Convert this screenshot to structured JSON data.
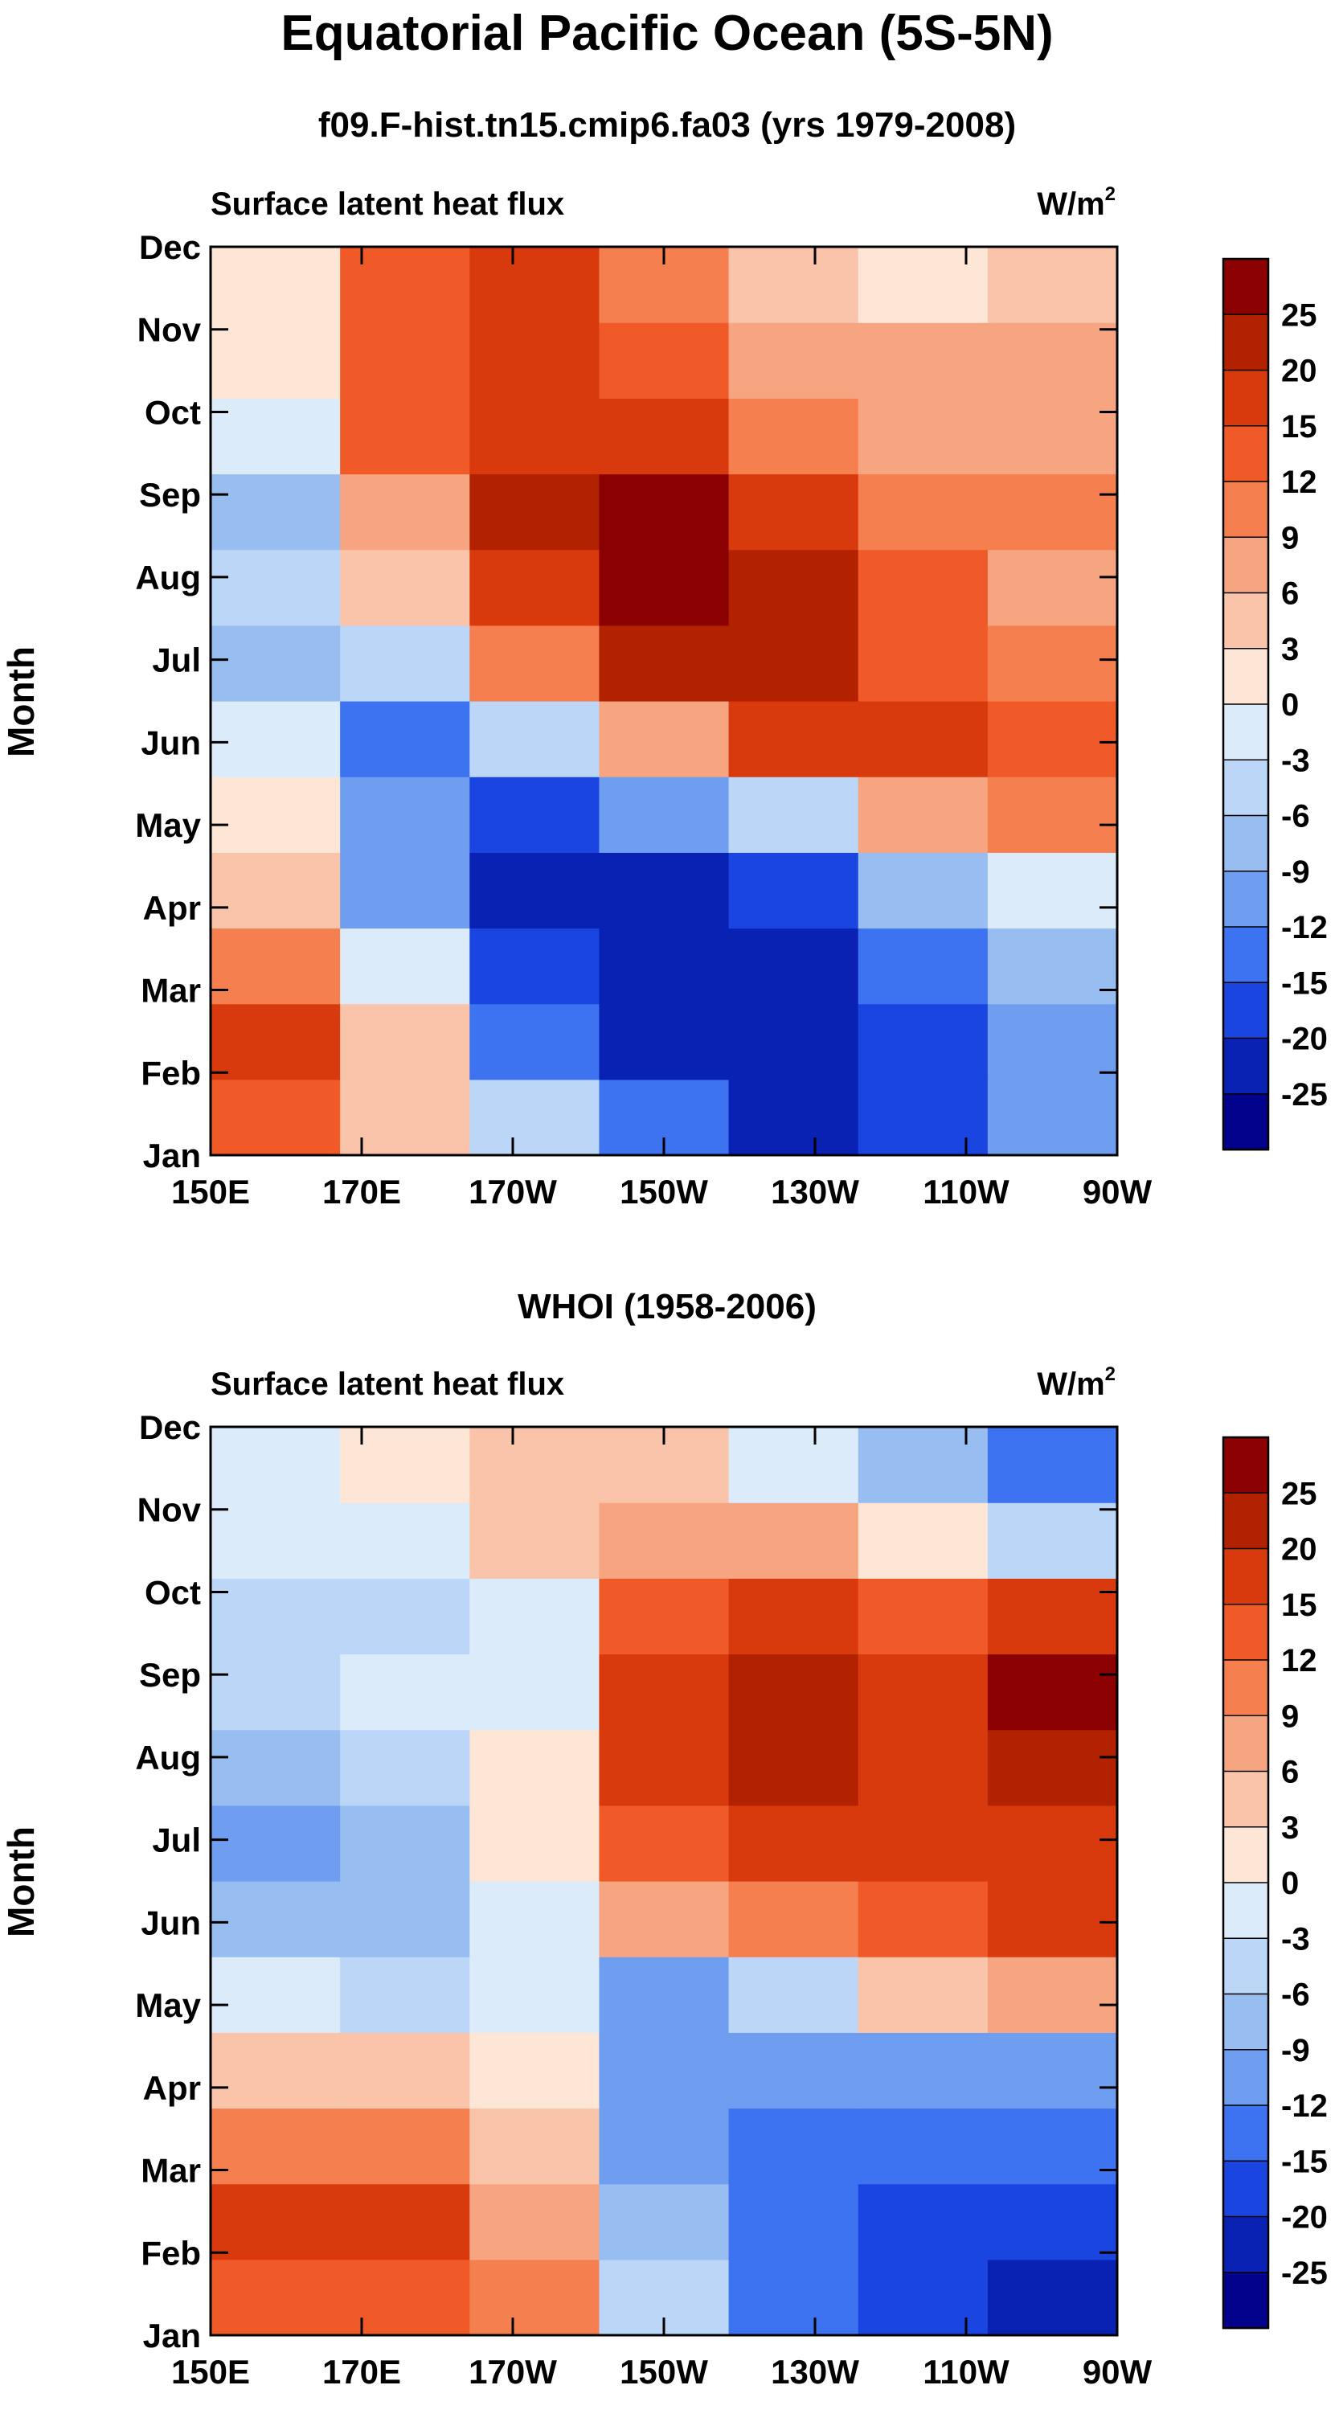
{
  "figure": {
    "title": "Equatorial Pacific Ocean (5S-5N)"
  },
  "chart_data": [
    {
      "type": "heatmap",
      "title": "f09.F-hist.tn15.cmip6.fa03 (yrs 1979-2008)",
      "left_label": "Surface latent heat flux",
      "units_base": "W/m",
      "units_exp": "2",
      "ylabel": "Month",
      "xlabel": "",
      "x_categories": [
        "150E",
        "170E",
        "170W",
        "150W",
        "130W",
        "110W",
        "90W"
      ],
      "y_categories": [
        "Jan",
        "Feb",
        "Mar",
        "Apr",
        "May",
        "Jun",
        "Jul",
        "Aug",
        "Sep",
        "Oct",
        "Nov",
        "Dec"
      ],
      "values": [
        [
          12,
          3,
          -6,
          -15,
          -25,
          -20,
          -12
        ],
        [
          15,
          3,
          -15,
          -25,
          -25,
          -20,
          -12
        ],
        [
          9,
          -3,
          -20,
          -25,
          -25,
          -15,
          -9
        ],
        [
          3,
          -12,
          -25,
          -25,
          -20,
          -9,
          -3
        ],
        [
          0,
          -12,
          -20,
          -12,
          -6,
          6,
          9
        ],
        [
          -3,
          -15,
          -6,
          6,
          15,
          15,
          12
        ],
        [
          -9,
          -6,
          9,
          20,
          20,
          12,
          9
        ],
        [
          -6,
          3,
          15,
          25,
          20,
          12,
          6
        ],
        [
          -9,
          6,
          20,
          25,
          15,
          9,
          9
        ],
        [
          -3,
          12,
          15,
          15,
          9,
          6,
          6
        ],
        [
          0,
          12,
          15,
          12,
          6,
          6,
          6
        ],
        [
          0,
          12,
          15,
          9,
          3,
          0,
          3
        ]
      ],
      "colorbar_levels": [
        "25",
        "20",
        "15",
        "12",
        "9",
        "6",
        "3",
        "0",
        "-3",
        "-6",
        "-9",
        "-12",
        "-15",
        "-20",
        "-25"
      ],
      "colors": [
        "#8b0000",
        "#b22200",
        "#d93a0d",
        "#f05a28",
        "#f57f4f",
        "#f7a480",
        "#fac4aa",
        "#fde6d6",
        "#dcebfa",
        "#bcd6f7",
        "#98bdf0",
        "#6f9df0",
        "#3d72f0",
        "#1a45e0",
        "#0a22b3",
        "#02028c"
      ]
    },
    {
      "type": "heatmap",
      "title": "WHOI (1958-2006)",
      "left_label": "Surface latent heat flux",
      "units_base": "W/m",
      "units_exp": "2",
      "ylabel": "Month",
      "xlabel": "",
      "x_categories": [
        "150E",
        "170E",
        "170W",
        "150W",
        "130W",
        "110W",
        "90W"
      ],
      "y_categories": [
        "Jan",
        "Feb",
        "Mar",
        "Apr",
        "May",
        "Jun",
        "Jul",
        "Aug",
        "Sep",
        "Oct",
        "Nov",
        "Dec"
      ],
      "values": [
        [
          12,
          12,
          9,
          -6,
          -15,
          -20,
          -25
        ],
        [
          15,
          15,
          6,
          -9,
          -15,
          -20,
          -20
        ],
        [
          9,
          9,
          3,
          -12,
          -15,
          -15,
          -15
        ],
        [
          3,
          3,
          0,
          -12,
          -12,
          -12,
          -12
        ],
        [
          -3,
          -6,
          -3,
          -12,
          -6,
          3,
          6
        ],
        [
          -9,
          -9,
          -3,
          6,
          9,
          12,
          15
        ],
        [
          -12,
          -9,
          0,
          12,
          15,
          15,
          15
        ],
        [
          -9,
          -6,
          0,
          15,
          20,
          15,
          20
        ],
        [
          -6,
          -3,
          -3,
          15,
          20,
          15,
          25
        ],
        [
          -6,
          -6,
          -3,
          12,
          15,
          12,
          15
        ],
        [
          -3,
          -3,
          3,
          6,
          6,
          0,
          -6
        ],
        [
          -3,
          0,
          3,
          3,
          -3,
          -9,
          -15
        ]
      ],
      "colorbar_levels": [
        "25",
        "20",
        "15",
        "12",
        "9",
        "6",
        "3",
        "0",
        "-3",
        "-6",
        "-9",
        "-12",
        "-15",
        "-20",
        "-25"
      ],
      "colors": [
        "#8b0000",
        "#b22200",
        "#d93a0d",
        "#f05a28",
        "#f57f4f",
        "#f7a480",
        "#fac4aa",
        "#fde6d6",
        "#dcebfa",
        "#bcd6f7",
        "#98bdf0",
        "#6f9df0",
        "#3d72f0",
        "#1a45e0",
        "#0a22b3",
        "#02028c"
      ]
    }
  ]
}
